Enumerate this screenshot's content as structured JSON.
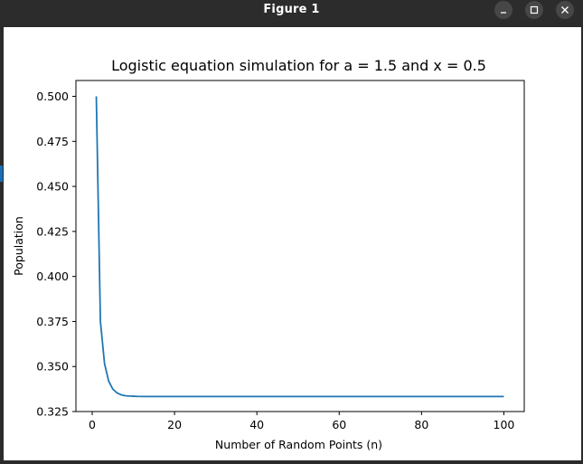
{
  "window": {
    "title": "Figure 1",
    "buttons": {
      "minimize_icon": "minimize-icon",
      "maximize_icon": "maximize-icon",
      "close_icon": "close-icon"
    }
  },
  "chart_data": {
    "type": "line",
    "title": "Logistic equation simulation for a = 1.5 and x = 0.5",
    "xlabel": "Number of Random Points (n)",
    "ylabel": "Population",
    "xlim": [
      -3.95,
      104.95
    ],
    "ylim": [
      0.325,
      0.5088
    ],
    "xticks": [
      0,
      20,
      40,
      60,
      80,
      100
    ],
    "xtick_labels": [
      "0",
      "20",
      "40",
      "60",
      "80",
      "100"
    ],
    "yticks": [
      0.325,
      0.35,
      0.375,
      0.4,
      0.425,
      0.45,
      0.475,
      0.5
    ],
    "ytick_labels": [
      "0.325",
      "0.350",
      "0.375",
      "0.400",
      "0.425",
      "0.450",
      "0.475",
      "0.500"
    ],
    "grid": false,
    "line_color": "#1f77b4",
    "series": [
      {
        "x": [
          1,
          2,
          3,
          4,
          5,
          6,
          7,
          8,
          9,
          10,
          11,
          12,
          13,
          14,
          15,
          20,
          30,
          40,
          50,
          60,
          70,
          80,
          90,
          100
        ],
        "y": [
          0.5,
          0.375,
          0.3516,
          0.3419,
          0.3375,
          0.3354,
          0.3343,
          0.3338,
          0.3336,
          0.3335,
          0.3334,
          0.33336,
          0.33335,
          0.33334,
          0.33334,
          0.33333,
          0.33333,
          0.33333,
          0.33333,
          0.33333,
          0.33333,
          0.33333,
          0.33333,
          0.33333
        ]
      }
    ]
  }
}
